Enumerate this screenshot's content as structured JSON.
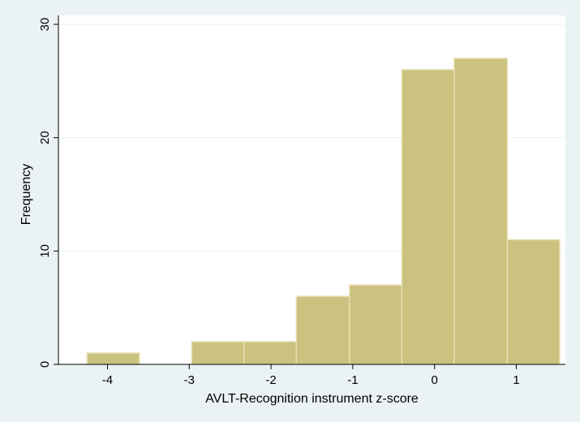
{
  "chart_data": {
    "type": "histogram",
    "title": "",
    "xlabel": "AVLT-Recognition instrument z-score",
    "ylabel": "Frequency",
    "xlim": [
      -4.6,
      1.6
    ],
    "ylim": [
      0,
      30
    ],
    "x_ticks": [
      -4,
      -3,
      -2,
      -1,
      0,
      1
    ],
    "y_ticks": [
      0,
      10,
      20,
      30
    ],
    "grid": true,
    "legend": "none",
    "bins": [
      {
        "start": -4.25,
        "end": -3.61,
        "value": 1
      },
      {
        "start": -2.97,
        "end": -2.33,
        "value": 2
      },
      {
        "start": -2.33,
        "end": -1.69,
        "value": 2
      },
      {
        "start": -1.69,
        "end": -1.04,
        "value": 6
      },
      {
        "start": -1.04,
        "end": -0.4,
        "value": 7
      },
      {
        "start": -0.4,
        "end": 0.24,
        "value": 26
      },
      {
        "start": 0.24,
        "end": 0.89,
        "value": 27
      },
      {
        "start": 0.89,
        "end": 1.53,
        "value": 11
      }
    ],
    "colors": {
      "bar_fill": "#cbc27f",
      "bar_stroke": "#e6e0b2",
      "background": "#eaf2f3",
      "plot_background": "#ffffff",
      "grid": "#eaf2f3"
    }
  }
}
